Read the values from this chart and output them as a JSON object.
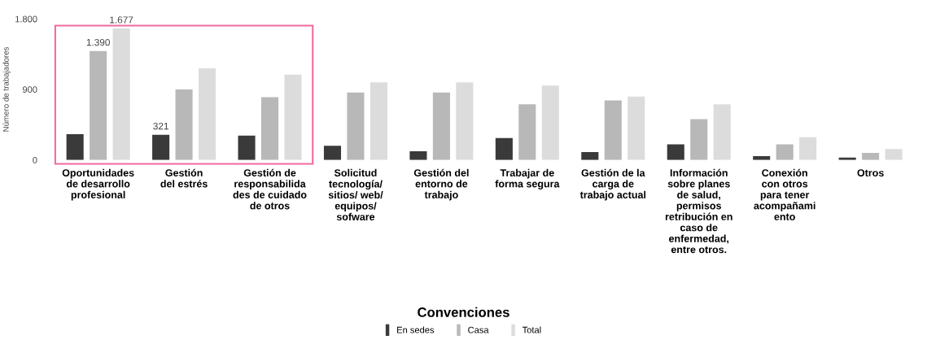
{
  "chart_data": {
    "type": "bar",
    "ylabel": "Número de trabajadores",
    "legend_title": "Convenciones",
    "legend": "bottom",
    "categories": [
      "Oportunidades\nde desarrollo\nprofesional",
      "Gestión\ndel estrés",
      "Gestión de\nresponsabilida\ndes de cuidado\nde otros",
      "Solicitud\ntecnología/\nsitios/ web/\nequipos/\nsofware",
      "Gestión del\nentorno de\ntrabajo",
      "Trabajar de\nforma segura",
      "Gestión de la\ncarga de\ntrabajo actual",
      "Información\nsobre planes\nde salud,\npermisos\nretribución en\ncaso de\nenfermedad,\nentre otros.",
      "Conexión\ncon otros\npara tener\nacompañami\nento",
      "Otros"
    ],
    "series": [
      {
        "name": "En sedes",
        "color": "#3a3a3a",
        "values": [
          330,
          321,
          310,
          180,
          110,
          280,
          100,
          200,
          50,
          30
        ],
        "value_labels": [
          null,
          "321",
          null,
          null,
          null,
          null,
          null,
          null,
          null,
          null
        ]
      },
      {
        "name": "Casa",
        "color": "#b8b8b8",
        "values": [
          1390,
          900,
          800,
          860,
          860,
          710,
          760,
          520,
          200,
          90
        ],
        "value_labels": [
          "1.390",
          null,
          null,
          null,
          null,
          null,
          null,
          null,
          null,
          null
        ]
      },
      {
        "name": "Total",
        "color": "#dcdcdc",
        "values": [
          1677,
          1170,
          1090,
          990,
          990,
          950,
          810,
          710,
          290,
          140
        ],
        "value_labels": [
          "1.677",
          null,
          null,
          null,
          null,
          null,
          null,
          null,
          null,
          null
        ]
      }
    ],
    "ylim": [
      0,
      1800
    ],
    "yticks": [
      0,
      900,
      {
        "value": 1800,
        "label": "1.800"
      }
    ],
    "grid": false
  }
}
